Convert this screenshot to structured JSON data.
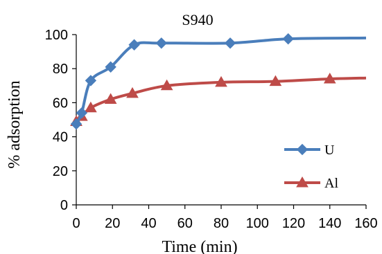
{
  "chart_data": {
    "type": "line",
    "title": "S940",
    "xlabel": "Time (min)",
    "ylabel": "% adsorption",
    "xlim": [
      0,
      160
    ],
    "ylim": [
      0,
      100
    ],
    "xticks": [
      0,
      20,
      40,
      60,
      80,
      100,
      120,
      140,
      160
    ],
    "yticks": [
      0,
      20,
      40,
      60,
      80,
      100
    ],
    "grid": false,
    "legend_position": "bottom-right",
    "series": [
      {
        "name": "U",
        "color": "#4a7ebb",
        "marker": "diamond",
        "x": [
          0,
          3,
          8,
          19,
          32,
          47,
          85,
          117,
          160
        ],
        "y": [
          47.5,
          54,
          73,
          81,
          94,
          95,
          95,
          97.5,
          98
        ]
      },
      {
        "name": "Al",
        "color": "#be4b48",
        "marker": "triangle",
        "x": [
          0,
          3,
          8,
          19,
          31,
          50,
          80,
          110,
          140,
          160
        ],
        "y": [
          49,
          52,
          57,
          62,
          65.5,
          70,
          72,
          72.5,
          74,
          74.5
        ]
      }
    ]
  }
}
